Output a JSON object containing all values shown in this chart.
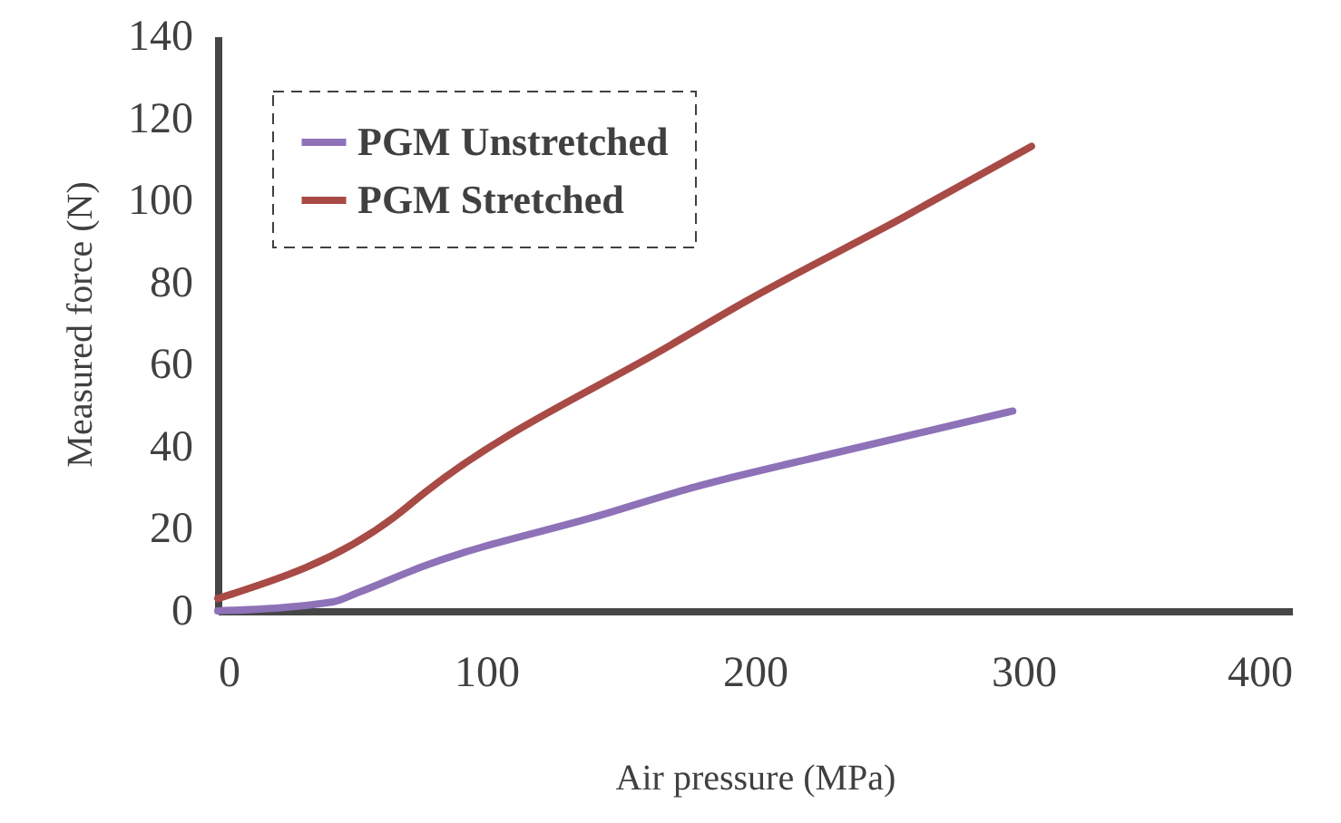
{
  "chart_data": {
    "type": "line",
    "xlabel": "Air pressure (MPa)",
    "ylabel": "Measured force (N)",
    "xlim": [
      0,
      400
    ],
    "xticks": [
      0,
      100,
      200,
      300,
      400
    ],
    "ylim": [
      0,
      140
    ],
    "yticks": [
      0,
      20,
      40,
      60,
      80,
      100,
      120,
      140
    ],
    "grid": false,
    "legend": "top left",
    "marker": "none",
    "line_style": "solid",
    "series": [
      {
        "name": "PGM Unstretched",
        "color": "#8e72b8",
        "x": [
          0,
          43,
          52,
          77,
          144,
          176,
          228,
          296
        ],
        "values": [
          0,
          2.2,
          4.4,
          11,
          23.6,
          29.9,
          38.2,
          48.7
        ]
      },
      {
        "name": "PGM Stretched",
        "color": "#a84a45",
        "x": [
          0,
          66,
          77,
          169,
          196,
          255,
          303
        ],
        "values": [
          3,
          23,
          28.8,
          64.9,
          75.2,
          95.8,
          113.2
        ]
      }
    ]
  }
}
